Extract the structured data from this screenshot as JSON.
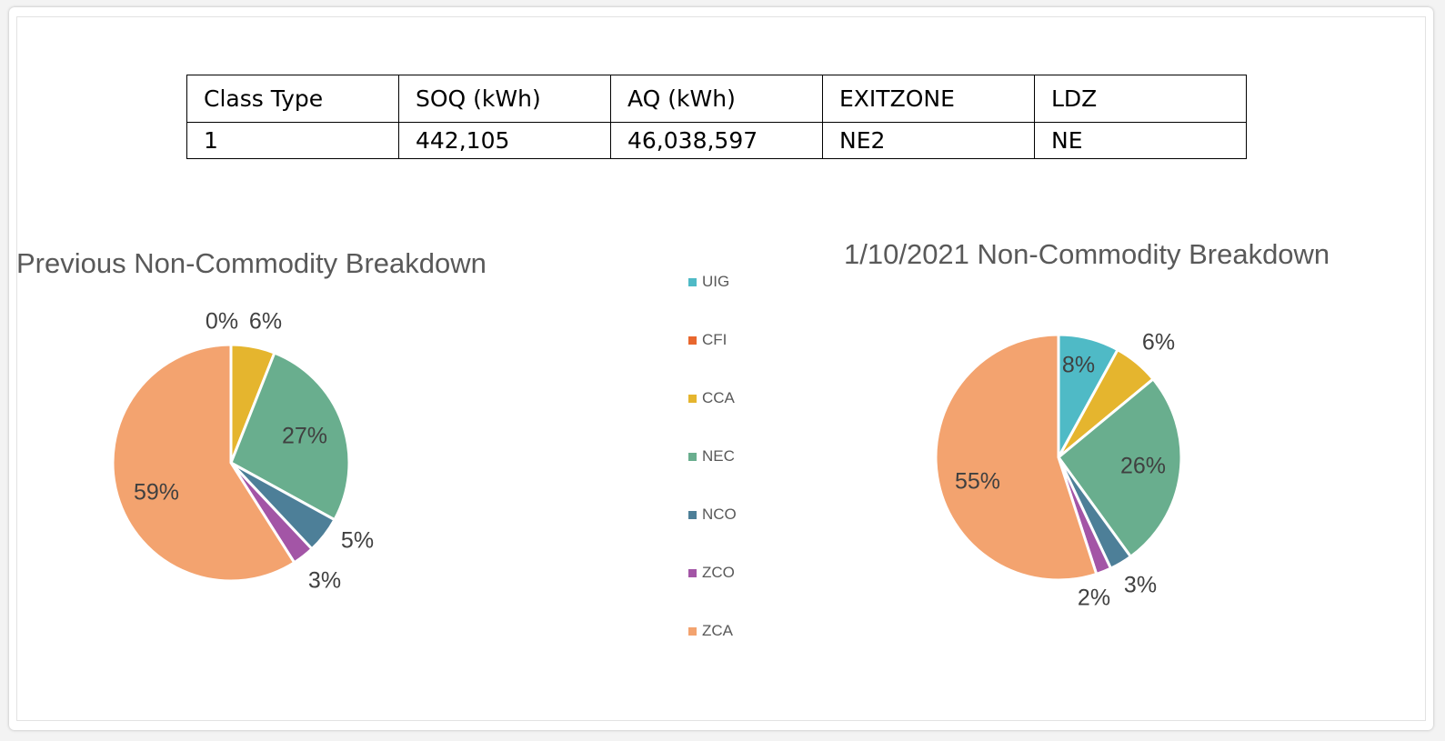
{
  "table": {
    "headers": [
      "Class Type",
      "SOQ (kWh)",
      "AQ (kWh)",
      "EXITZONE",
      "LDZ"
    ],
    "row": [
      "1",
      "442,105",
      "46,038,597",
      "NE2",
      "NE"
    ]
  },
  "legend": [
    {
      "name": "UIG",
      "color": "#4fbac6"
    },
    {
      "name": "CFI",
      "color": "#e8672e"
    },
    {
      "name": "CCA",
      "color": "#e5b52e"
    },
    {
      "name": "NEC",
      "color": "#69ae8e"
    },
    {
      "name": "NCO",
      "color": "#4d7f98"
    },
    {
      "name": "ZCO",
      "color": "#a355a6"
    },
    {
      "name": "ZCA",
      "color": "#f3a36f"
    }
  ],
  "chart_data": [
    {
      "type": "pie",
      "title": "Previous Non-Commodity Breakdown",
      "categories": [
        "UIG",
        "CFI",
        "CCA",
        "NEC",
        "NCO",
        "ZCO",
        "ZCA"
      ],
      "values": [
        0,
        0,
        6,
        27,
        5,
        3,
        59
      ],
      "labels": [
        "",
        "0%",
        "6%",
        "27%",
        "5%",
        "3%",
        "59%"
      ],
      "legend_position": "shared-center"
    },
    {
      "type": "pie",
      "title": "1/10/2021 Non-Commodity Breakdown",
      "categories": [
        "UIG",
        "CFI",
        "CCA",
        "NEC",
        "NCO",
        "ZCO",
        "ZCA"
      ],
      "values": [
        8,
        0,
        6,
        26,
        3,
        2,
        55
      ],
      "labels": [
        "8%",
        "",
        "6%",
        "26%",
        "3%",
        "2%",
        "55%"
      ],
      "legend_position": "shared-center"
    }
  ]
}
